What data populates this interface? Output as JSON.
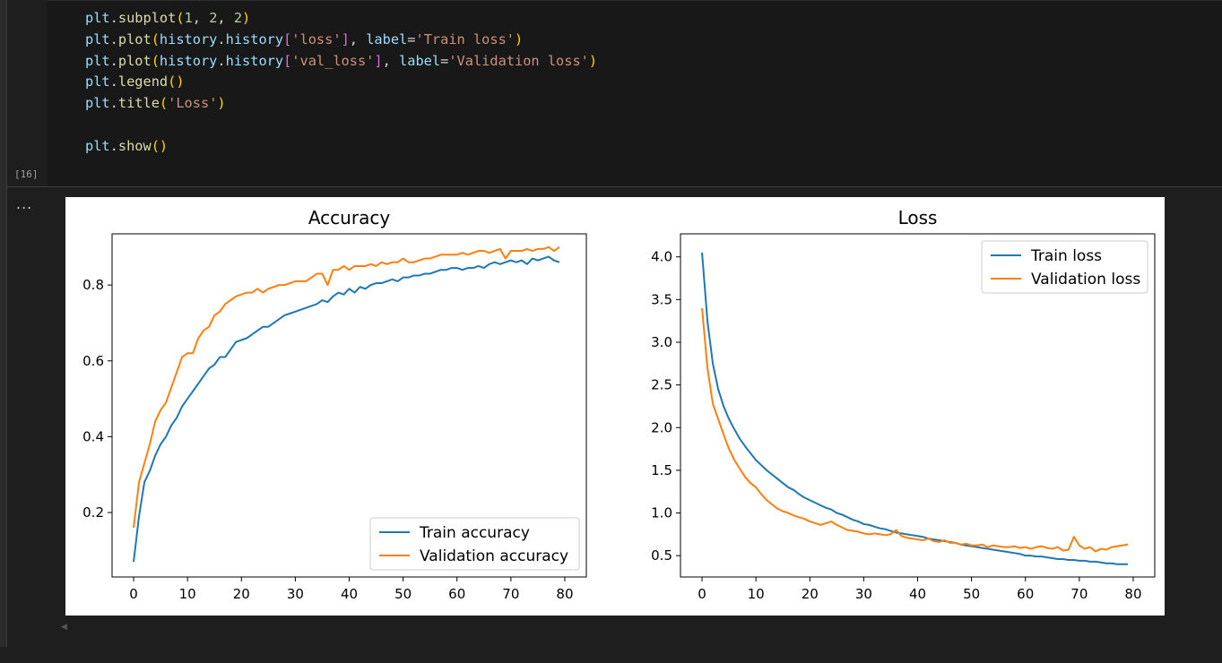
{
  "code_cell": {
    "execution_count": "[16]",
    "lines": [
      "plt.subplot(1, 2, 2)",
      "plt.plot(history.history['loss'], label='Train loss')",
      "plt.plot(history.history['val_loss'], label='Validation loss')",
      "plt.legend()",
      "plt.title('Loss')",
      "",
      "plt.show()"
    ]
  },
  "output": {
    "menu_label": "..."
  },
  "colors": {
    "train": "#1f77b4",
    "validation": "#ff7f0e",
    "background": "#1e1e1e",
    "output_background": "#ffffff"
  },
  "chart_data": [
    {
      "type": "line",
      "title": "Accuracy",
      "xlabel": "",
      "ylabel": "",
      "xlim": [
        -4,
        84
      ],
      "ylim": [
        0.03,
        0.935
      ],
      "xticks": [
        0,
        10,
        20,
        30,
        40,
        50,
        60,
        70,
        80
      ],
      "yticks": [
        0.2,
        0.4,
        0.6,
        0.8
      ],
      "legend_position": "lower-right",
      "series": [
        {
          "name": "Train accuracy",
          "color": "#1f77b4",
          "x_start": 0,
          "values": [
            0.07,
            0.19,
            0.28,
            0.31,
            0.35,
            0.38,
            0.4,
            0.43,
            0.45,
            0.48,
            0.5,
            0.52,
            0.54,
            0.56,
            0.58,
            0.59,
            0.61,
            0.61,
            0.63,
            0.65,
            0.655,
            0.66,
            0.67,
            0.68,
            0.69,
            0.69,
            0.7,
            0.71,
            0.72,
            0.725,
            0.73,
            0.735,
            0.74,
            0.745,
            0.75,
            0.76,
            0.755,
            0.77,
            0.78,
            0.775,
            0.79,
            0.78,
            0.795,
            0.79,
            0.8,
            0.805,
            0.805,
            0.81,
            0.815,
            0.81,
            0.82,
            0.82,
            0.825,
            0.825,
            0.83,
            0.83,
            0.835,
            0.84,
            0.84,
            0.845,
            0.845,
            0.84,
            0.845,
            0.845,
            0.85,
            0.845,
            0.855,
            0.86,
            0.855,
            0.86,
            0.865,
            0.86,
            0.865,
            0.855,
            0.87,
            0.865,
            0.87,
            0.875,
            0.865,
            0.86
          ]
        },
        {
          "name": "Validation accuracy",
          "color": "#ff7f0e",
          "x_start": 0,
          "values": [
            0.16,
            0.28,
            0.33,
            0.38,
            0.44,
            0.47,
            0.49,
            0.53,
            0.57,
            0.61,
            0.62,
            0.62,
            0.66,
            0.68,
            0.69,
            0.72,
            0.73,
            0.75,
            0.76,
            0.77,
            0.775,
            0.78,
            0.78,
            0.79,
            0.78,
            0.79,
            0.795,
            0.8,
            0.8,
            0.805,
            0.81,
            0.81,
            0.81,
            0.82,
            0.83,
            0.83,
            0.8,
            0.84,
            0.84,
            0.85,
            0.84,
            0.85,
            0.85,
            0.85,
            0.855,
            0.85,
            0.86,
            0.855,
            0.86,
            0.86,
            0.87,
            0.86,
            0.86,
            0.865,
            0.87,
            0.87,
            0.875,
            0.88,
            0.88,
            0.88,
            0.88,
            0.885,
            0.88,
            0.885,
            0.89,
            0.89,
            0.885,
            0.89,
            0.895,
            0.87,
            0.89,
            0.89,
            0.89,
            0.895,
            0.89,
            0.895,
            0.895,
            0.9,
            0.89,
            0.9
          ]
        }
      ]
    },
    {
      "type": "line",
      "title": "Loss",
      "xlabel": "",
      "ylabel": "",
      "xlim": [
        -4,
        84
      ],
      "ylim": [
        0.25,
        4.27
      ],
      "xticks": [
        0,
        10,
        20,
        30,
        40,
        50,
        60,
        70,
        80
      ],
      "yticks": [
        0.5,
        1.0,
        1.5,
        2.0,
        2.5,
        3.0,
        3.5,
        4.0
      ],
      "legend_position": "upper-right",
      "series": [
        {
          "name": "Train loss",
          "color": "#1f77b4",
          "x_start": 0,
          "values": [
            4.05,
            3.25,
            2.75,
            2.45,
            2.25,
            2.1,
            1.98,
            1.87,
            1.78,
            1.7,
            1.62,
            1.56,
            1.5,
            1.45,
            1.4,
            1.35,
            1.3,
            1.27,
            1.22,
            1.18,
            1.15,
            1.12,
            1.09,
            1.06,
            1.04,
            1.0,
            0.98,
            0.95,
            0.92,
            0.9,
            0.87,
            0.86,
            0.84,
            0.82,
            0.81,
            0.79,
            0.77,
            0.76,
            0.75,
            0.74,
            0.73,
            0.72,
            0.7,
            0.69,
            0.68,
            0.67,
            0.66,
            0.65,
            0.63,
            0.62,
            0.61,
            0.6,
            0.59,
            0.58,
            0.57,
            0.56,
            0.55,
            0.54,
            0.53,
            0.52,
            0.5,
            0.5,
            0.49,
            0.49,
            0.48,
            0.47,
            0.46,
            0.46,
            0.45,
            0.45,
            0.44,
            0.44,
            0.43,
            0.43,
            0.42,
            0.41,
            0.41,
            0.4,
            0.4,
            0.4
          ]
        },
        {
          "name": "Validation loss",
          "color": "#ff7f0e",
          "x_start": 0,
          "values": [
            3.4,
            2.7,
            2.28,
            2.1,
            1.92,
            1.75,
            1.62,
            1.52,
            1.42,
            1.35,
            1.3,
            1.22,
            1.15,
            1.1,
            1.05,
            1.02,
            1.0,
            0.97,
            0.95,
            0.93,
            0.9,
            0.88,
            0.86,
            0.88,
            0.9,
            0.86,
            0.83,
            0.8,
            0.79,
            0.78,
            0.76,
            0.75,
            0.76,
            0.75,
            0.74,
            0.75,
            0.8,
            0.73,
            0.71,
            0.7,
            0.69,
            0.68,
            0.7,
            0.67,
            0.66,
            0.68,
            0.65,
            0.65,
            0.63,
            0.64,
            0.62,
            0.62,
            0.63,
            0.6,
            0.62,
            0.61,
            0.6,
            0.6,
            0.61,
            0.59,
            0.6,
            0.58,
            0.6,
            0.61,
            0.59,
            0.58,
            0.6,
            0.56,
            0.57,
            0.72,
            0.62,
            0.58,
            0.6,
            0.55,
            0.58,
            0.57,
            0.6,
            0.61,
            0.62,
            0.63
          ]
        }
      ]
    }
  ]
}
